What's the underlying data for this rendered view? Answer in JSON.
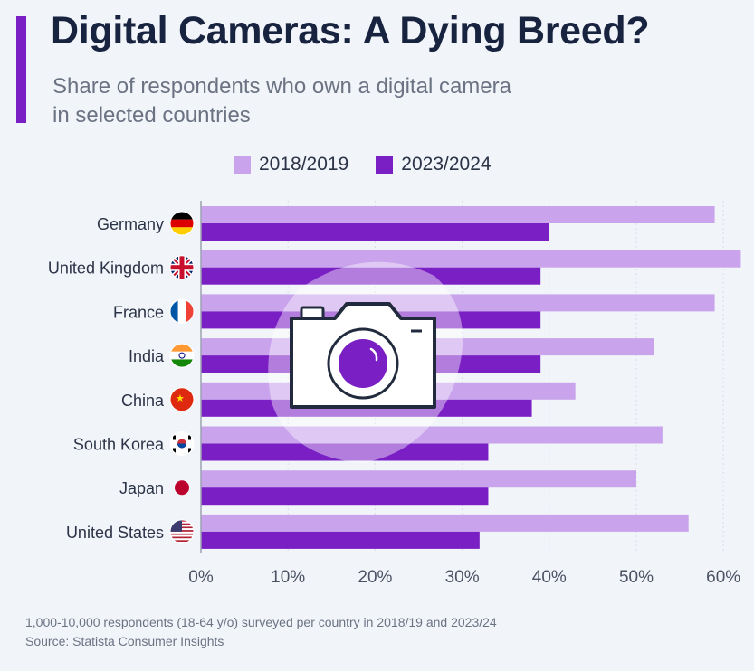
{
  "header": {
    "title": "Digital Cameras: A Dying Breed?",
    "subtitle_line1": "Share of respondents who own a digital camera",
    "subtitle_line2": "in selected countries"
  },
  "colors": {
    "accent": "#7a1fc4",
    "series_2018": "#c9a3ec",
    "series_2023": "#7a1fc4",
    "background": "#f1f4f9"
  },
  "chart_data": {
    "type": "bar",
    "orientation": "horizontal",
    "title": "Digital Cameras: A Dying Breed?",
    "subtitle": "Share of respondents who own a digital camera in selected countries",
    "categories": [
      "Germany",
      "United Kingdom",
      "France",
      "India",
      "China",
      "South Korea",
      "Japan",
      "United States"
    ],
    "series": [
      {
        "name": "2018/2019",
        "color": "#c9a3ec",
        "values": [
          59,
          62,
          59,
          52,
          43,
          53,
          50,
          56
        ]
      },
      {
        "name": "2023/2024",
        "color": "#7a1fc4",
        "values": [
          40,
          39,
          39,
          39,
          38,
          33,
          33,
          32
        ]
      }
    ],
    "x_ticks": [
      "0%",
      "10%",
      "20%",
      "30%",
      "40%",
      "50%",
      "60%"
    ],
    "xlim": [
      0,
      62
    ],
    "unit": "%",
    "legend_position": "top",
    "grid": true,
    "flags": [
      "germany-flag-icon",
      "uk-flag-icon",
      "france-flag-icon",
      "india-flag-icon",
      "china-flag-icon",
      "south-korea-flag-icon",
      "japan-flag-icon",
      "us-flag-icon"
    ],
    "overlay_icon": "camera-icon"
  },
  "footer": {
    "note": "1,000-10,000 respondents (18-64 y/o) surveyed per country in 2018/19 and 2023/24",
    "source": "Source: Statista Consumer Insights"
  }
}
